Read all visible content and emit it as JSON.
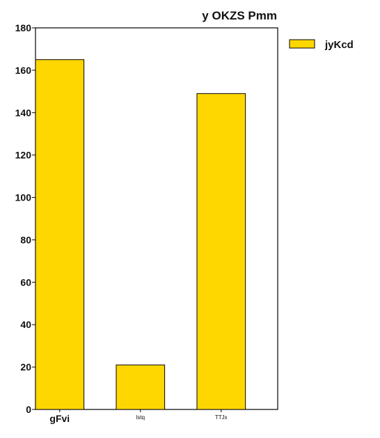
{
  "chart_data": {
    "type": "bar",
    "title": "y OKZS  Pmm",
    "xlabel": "",
    "ylabel": "",
    "categories": [
      "gFvi",
      "lstq",
      "TTJx"
    ],
    "category_label_sizes": [
      "large",
      "small",
      "small"
    ],
    "series": [
      {
        "name": "jyKcd",
        "values": [
          165,
          21,
          149
        ],
        "color": "#ffd700"
      }
    ],
    "ylim": [
      0,
      180
    ],
    "yticks": [
      0,
      20,
      40,
      60,
      80,
      100,
      120,
      140,
      160,
      180
    ],
    "grid": false,
    "legend_position": "right"
  }
}
